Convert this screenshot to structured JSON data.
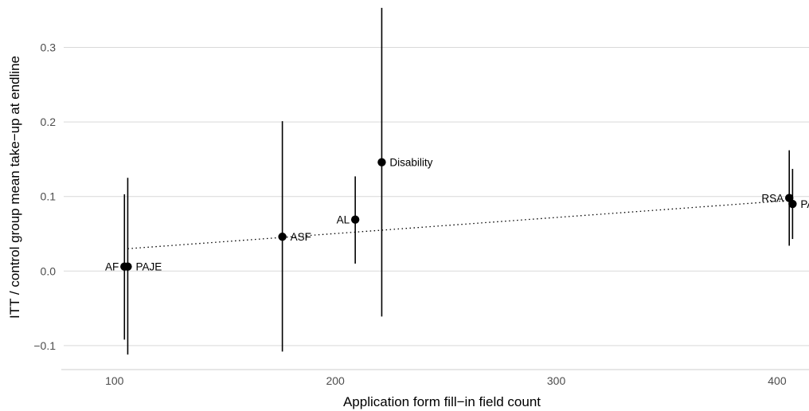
{
  "chart_data": {
    "type": "scatter",
    "xlabel": "Application form fill−in field count",
    "ylabel": "ITT / control group mean take−up at endline",
    "xlim": [
      77,
      413
    ],
    "ylim": [
      -0.13,
      0.355
    ],
    "x_ticks": [
      100,
      200,
      300,
      400
    ],
    "x_tick_labels": [
      "100",
      "200",
      "300",
      "400"
    ],
    "y_ticks": [
      -0.1,
      0.0,
      0.1,
      0.2,
      0.3
    ],
    "y_tick_labels": [
      "−0.1",
      "0.0",
      "0.1",
      "0.2",
      "0.3"
    ],
    "grid": "horizontal",
    "points": [
      {
        "label": "AF",
        "x": 104.5,
        "y": 0.006,
        "ci_low": -0.092,
        "ci_high": 0.103,
        "label_side": "left"
      },
      {
        "label": "PAJE",
        "x": 106,
        "y": 0.006,
        "ci_low": -0.112,
        "ci_high": 0.125,
        "label_side": "right"
      },
      {
        "label": "ASF",
        "x": 176,
        "y": 0.046,
        "ci_low": -0.108,
        "ci_high": 0.201,
        "label_side": "right"
      },
      {
        "label": "AL",
        "x": 209,
        "y": 0.069,
        "ci_low": 0.01,
        "ci_high": 0.127,
        "label_side": "left"
      },
      {
        "label": "Disability",
        "x": 221,
        "y": 0.146,
        "ci_low": -0.061,
        "ci_high": 0.353,
        "label_side": "right"
      },
      {
        "label": "RSA",
        "x": 405.5,
        "y": 0.098,
        "ci_low": 0.034,
        "ci_high": 0.162,
        "label_side": "left"
      },
      {
        "label": "PA",
        "x": 407,
        "y": 0.09,
        "ci_low": 0.043,
        "ci_high": 0.137,
        "label_side": "right"
      }
    ],
    "trend_line": {
      "x": [
        106,
        407
      ],
      "y": [
        0.03,
        0.095
      ],
      "style": "dotted"
    }
  }
}
